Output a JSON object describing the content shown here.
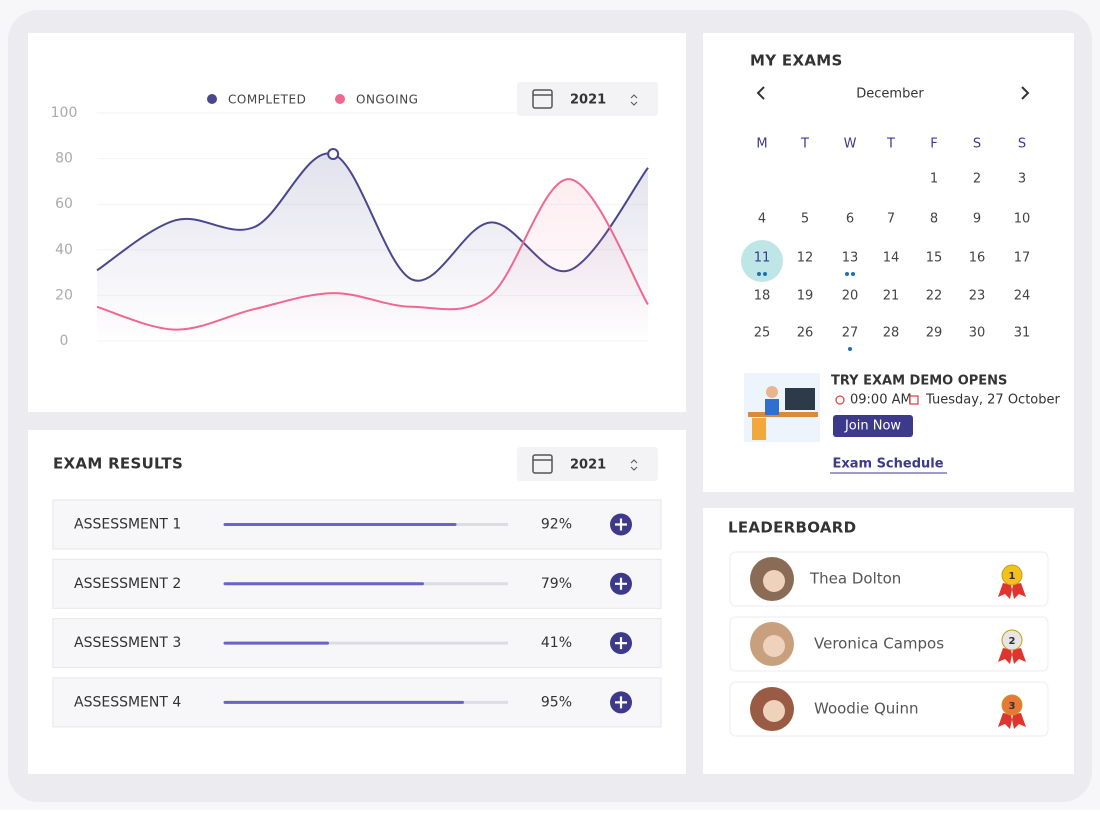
{
  "chart_data": {
    "type": "line",
    "categories": [
      null,
      null,
      null,
      null,
      null,
      null,
      null,
      null
    ],
    "series": [
      {
        "name": "COMPLETED",
        "color": "#4b478f",
        "values": [
          31,
          53,
          50,
          82,
          27,
          52,
          31,
          76
        ]
      },
      {
        "name": "ONGOING",
        "color": "#f0678f",
        "values": [
          15,
          5,
          14,
          21,
          15,
          20,
          71,
          16
        ]
      }
    ],
    "ylim": [
      0,
      100
    ],
    "yticks": [
      0,
      20,
      40,
      60,
      80,
      100
    ],
    "grid": true,
    "year": "2021"
  },
  "exam_results": {
    "title": "EXAM RESULTS",
    "year": "2021",
    "rows": [
      {
        "name": "ASSESSMENT 1",
        "value": 92,
        "value_label": "92%"
      },
      {
        "name": "ASSESSMENT 2",
        "value": 79,
        "value_label": "79%"
      },
      {
        "name": "ASSESSMENT 3",
        "value": 41,
        "value_label": "41%"
      },
      {
        "name": "ASSESSMENT 4",
        "value": 95,
        "value_label": "95%"
      }
    ]
  },
  "my_exams": {
    "title": "MY EXAMS",
    "month": "December",
    "weekdays": [
      "M",
      "T",
      "W",
      "T",
      "F",
      "S",
      "S"
    ],
    "days": [
      1,
      2,
      3,
      4,
      5,
      6,
      7,
      8,
      9,
      10,
      11,
      12,
      13,
      14,
      15,
      16,
      17,
      18,
      19,
      20,
      21,
      22,
      23,
      24,
      25,
      26,
      27,
      28,
      29,
      30,
      31
    ],
    "event": {
      "title": "TRY EXAM DEMO OPENS",
      "time": "09:00 AM",
      "date": "Tuesday, 27 October",
      "button": "Join Now"
    },
    "link": "Exam Schedule"
  },
  "leaderboard": {
    "title": "LEADERBOARD",
    "entries": [
      {
        "name": "Thea Dolton",
        "rank": 1
      },
      {
        "name": "Veronica Campos",
        "rank": 2
      },
      {
        "name": "Woodie Quinn",
        "rank": 3
      }
    ]
  }
}
